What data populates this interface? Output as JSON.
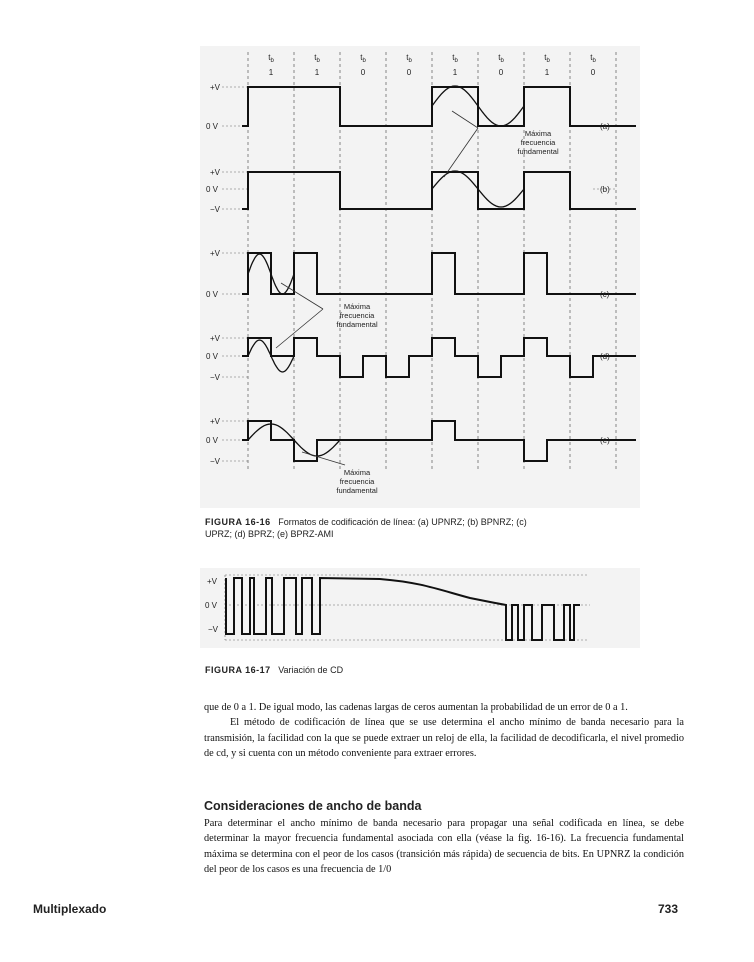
{
  "figure_16_16": {
    "bit_period_label": "t",
    "bit_period_sub": "b",
    "bits": [
      "1",
      "1",
      "0",
      "0",
      "1",
      "0",
      "1",
      "0"
    ],
    "levels": {
      "plus_v": "+V",
      "zero_v": "0 V",
      "minus_v": "−V"
    },
    "panel_labels": [
      "(a)",
      "(b)",
      "(c)",
      "(d)",
      "(e)"
    ],
    "annotation_lines": [
      "Máxima",
      "frecuencia",
      "fundamental"
    ],
    "caption_label": "FIGURA 16-16",
    "caption_text_1": "Formatos de codificación de línea: (a) UPNRZ; (b) BPNRZ; (c)",
    "caption_text_2": "UPRZ; (d) BPRZ; (e) BPRZ-AMI"
  },
  "figure_16_17": {
    "levels": {
      "plus_v": "+V",
      "zero_v": "0 V",
      "minus_v": "−V"
    },
    "caption_label": "FIGURA 16-17",
    "caption_text": "Variación de CD"
  },
  "body": {
    "para1": "que de 0 a 1. De igual modo, las cadenas largas de ceros aumentan la probabilidad de un error de 0 a 1.",
    "para2": "El método de codificación de línea que se use determina el ancho mínimo de banda necesario para la transmisión, la facilidad con la que se puede extraer un reloj de ella, la facilidad de decodificarla, el nivel promedio de cd, y si cuenta con un método conveniente para extraer errores.",
    "heading": "Consideraciones de ancho de banda",
    "para3": "Para determinar el ancho mínimo de banda necesario para propagar una señal codificada en línea, se debe determinar la mayor frecuencia fundamental asociada con ella (véase la fig. 16-16). La frecuencia fundamental máxima se determina con el peor de los casos (transición más rápida) de secuencia de bits. En UPNRZ la condición del peor de los casos es una frecuencia de 1/0"
  },
  "footer": {
    "section": "Multiplexado",
    "page_number": "733"
  }
}
